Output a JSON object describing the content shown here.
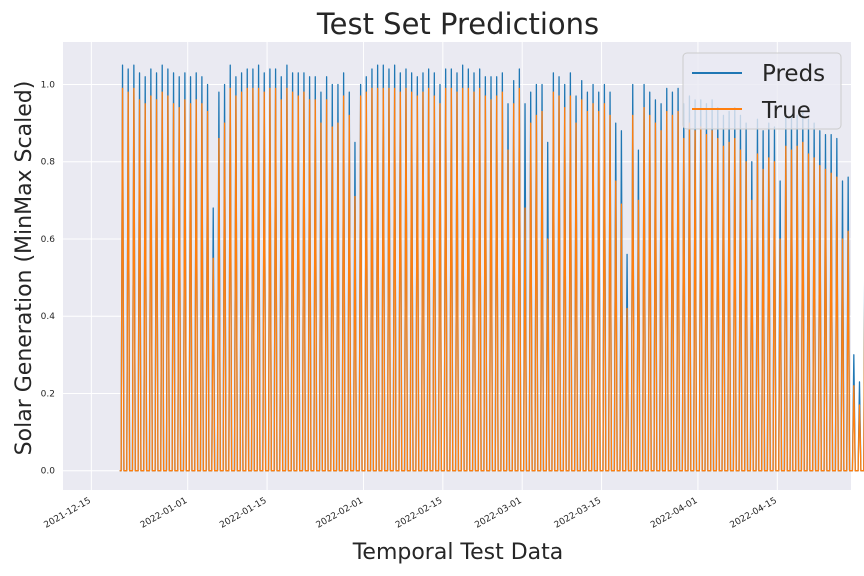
{
  "chart_data": {
    "type": "line",
    "title": "Test Set Predictions",
    "xlabel": "Temporal Test Data",
    "ylabel": "Solar Generation (MinMax Scaled)",
    "x_range": [
      "2021-12-10",
      "2022-04-28"
    ],
    "ylim": [
      -0.05,
      1.11
    ],
    "xticks": [
      "2021-12-15",
      "2022-01-01",
      "2022-01-15",
      "2022-02-01",
      "2022-02-15",
      "2022-03-01",
      "2022-03-15",
      "2022-04-01",
      "2022-04-15"
    ],
    "yticks": [
      "0.0",
      "0.2",
      "0.4",
      "0.6",
      "0.8",
      "1.0"
    ],
    "grid": true,
    "legend_position": "top-right",
    "start_date": "2021-12-20",
    "series": [
      {
        "name": "Preds",
        "color": "#1f77b4",
        "daily_peaks": [
          1.05,
          1.04,
          1.05,
          1.03,
          1.02,
          1.04,
          1.03,
          1.05,
          1.04,
          1.03,
          1.02,
          1.03,
          1.02,
          1.03,
          1.02,
          1.0,
          0.68,
          0.98,
          1.0,
          1.05,
          1.02,
          1.03,
          1.04,
          1.04,
          1.05,
          1.03,
          1.04,
          1.04,
          1.02,
          1.05,
          1.03,
          1.03,
          1.03,
          1.02,
          1.02,
          0.98,
          1.02,
          1.0,
          1.0,
          1.03,
          0.98,
          0.85,
          1.0,
          1.02,
          1.04,
          1.05,
          1.05,
          1.04,
          1.05,
          1.03,
          1.04,
          1.03,
          1.02,
          1.03,
          1.04,
          1.03,
          1.0,
          1.04,
          1.04,
          1.03,
          1.05,
          1.04,
          1.03,
          1.04,
          1.02,
          1.02,
          1.02,
          1.03,
          0.95,
          1.01,
          1.04,
          0.95,
          0.98,
          1.0,
          1.0,
          0.85,
          1.03,
          1.02,
          1.0,
          1.03,
          0.97,
          1.01,
          0.98,
          1.0,
          0.98,
          1.0,
          0.98,
          0.9,
          0.88,
          0.56,
          1.0,
          0.83,
          1.0,
          0.98,
          0.96,
          0.95,
          0.99,
          0.98,
          0.99,
          0.95,
          0.97,
          0.96,
          0.96,
          0.95,
          0.96,
          0.94,
          0.92,
          0.93,
          0.94,
          0.92,
          0.9,
          0.8,
          0.91,
          0.88,
          0.9,
          0.89,
          0.75,
          0.92,
          0.92,
          0.92,
          0.93,
          0.91,
          0.9,
          0.88,
          0.87,
          0.87,
          0.86,
          0.75,
          0.76,
          0.3,
          0.23,
          0.78,
          0.88,
          0.91,
          0.88,
          0.88
        ],
        "daily_minima": [
          0.0,
          0.0,
          0.0,
          0.0,
          0.0,
          0.0,
          0.0,
          0.0,
          0.0,
          0.0,
          0.0,
          0.0,
          0.0,
          0.0,
          0.0,
          0.0,
          0.0,
          0.0,
          0.0,
          0.0,
          0.0,
          0.0,
          0.0,
          0.0,
          0.0,
          0.0,
          0.0,
          0.0,
          0.0,
          0.0,
          0.0,
          0.0,
          0.0,
          0.0,
          0.0,
          0.0,
          0.0,
          0.0,
          0.0,
          0.0,
          0.0,
          0.0,
          0.0,
          0.0,
          0.0,
          0.0,
          0.0,
          0.0,
          0.0,
          0.0,
          0.0,
          0.0,
          0.0,
          0.0,
          0.0,
          0.0,
          0.0,
          0.0,
          0.0,
          0.0,
          0.0,
          0.0,
          0.0,
          0.0,
          0.0,
          0.0,
          0.0,
          0.0,
          0.0,
          0.0,
          0.0,
          0.0,
          0.0,
          0.0,
          0.0,
          0.0,
          0.0,
          0.0,
          0.0,
          0.0,
          0.0,
          0.0,
          0.0,
          0.0,
          0.0,
          0.0,
          0.0,
          0.0,
          0.0,
          0.0,
          0.0,
          0.0,
          0.0,
          0.0,
          0.0,
          0.0,
          0.0,
          0.0,
          0.0,
          0.0,
          0.0,
          0.0,
          0.0,
          0.0,
          0.0,
          0.0,
          0.0,
          0.0,
          0.0,
          0.0,
          0.0,
          0.0,
          0.0,
          0.0,
          0.0,
          0.0,
          0.0,
          0.0,
          0.0,
          0.0,
          0.0,
          0.0,
          0.0,
          0.0,
          0.0,
          0.0,
          0.0,
          0.0,
          0.0,
          0.0,
          0.0,
          0.0,
          0.0,
          0.0
        ]
      },
      {
        "name": "True",
        "color": "#ff7f0e",
        "daily_peaks": [
          0.99,
          0.98,
          0.99,
          0.96,
          0.95,
          0.97,
          0.96,
          0.98,
          0.97,
          0.95,
          0.94,
          0.96,
          0.95,
          0.96,
          0.95,
          0.93,
          0.55,
          0.86,
          0.9,
          0.99,
          0.97,
          0.98,
          0.99,
          0.99,
          0.99,
          0.98,
          0.99,
          0.99,
          0.96,
          0.99,
          0.98,
          0.97,
          0.98,
          0.96,
          0.96,
          0.9,
          0.96,
          0.89,
          0.9,
          0.97,
          0.92,
          0.71,
          0.97,
          0.98,
          0.99,
          0.99,
          0.99,
          0.99,
          0.99,
          0.98,
          0.99,
          0.98,
          0.97,
          0.98,
          0.99,
          0.97,
          0.95,
          0.99,
          0.99,
          0.98,
          0.99,
          0.99,
          0.98,
          0.99,
          0.97,
          0.96,
          0.97,
          0.98,
          0.83,
          0.95,
          0.99,
          0.68,
          0.9,
          0.92,
          0.93,
          0.6,
          0.98,
          0.97,
          0.94,
          0.97,
          0.9,
          0.96,
          0.93,
          0.95,
          0.93,
          0.95,
          0.92,
          0.75,
          0.69,
          0.42,
          0.92,
          0.7,
          0.94,
          0.92,
          0.9,
          0.88,
          0.93,
          0.92,
          0.93,
          0.86,
          0.9,
          0.88,
          0.89,
          0.87,
          0.88,
          0.86,
          0.84,
          0.85,
          0.86,
          0.83,
          0.8,
          0.7,
          0.82,
          0.78,
          0.81,
          0.8,
          0.6,
          0.84,
          0.83,
          0.84,
          0.85,
          0.82,
          0.81,
          0.79,
          0.78,
          0.77,
          0.76,
          0.6,
          0.62,
          0.22,
          0.17,
          0.69,
          0.8,
          0.83,
          0.79,
          0.75
        ],
        "daily_minima": [
          0.0,
          0.0,
          0.0,
          0.0,
          0.0,
          0.0,
          0.0,
          0.0,
          0.0,
          0.0,
          0.0,
          0.0,
          0.0,
          0.0,
          0.0,
          0.0,
          0.0,
          0.0,
          0.0,
          0.0,
          0.0,
          0.0,
          0.0,
          0.0,
          0.0,
          0.0,
          0.0,
          0.0,
          0.0,
          0.0,
          0.0,
          0.0,
          0.0,
          0.0,
          0.0,
          0.0,
          0.0,
          0.0,
          0.0,
          0.0,
          0.0,
          0.0,
          0.0,
          0.0,
          0.0,
          0.0,
          0.0,
          0.0,
          0.0,
          0.0,
          0.0,
          0.0,
          0.0,
          0.0,
          0.0,
          0.0,
          0.0,
          0.0,
          0.0,
          0.0,
          0.0,
          0.0,
          0.0,
          0.0,
          0.0,
          0.0,
          0.0,
          0.0,
          0.0,
          0.0,
          0.0,
          0.0,
          0.0,
          0.0,
          0.0,
          0.0,
          0.0,
          0.0,
          0.0,
          0.0,
          0.0,
          0.0,
          0.0,
          0.0,
          0.0,
          0.0,
          0.0,
          0.0,
          0.0,
          0.0,
          0.0,
          0.0,
          0.0,
          0.0,
          0.0,
          0.0,
          0.0,
          0.0,
          0.0,
          0.0,
          0.0,
          0.0,
          0.0,
          0.0,
          0.0,
          0.0,
          0.0,
          0.0,
          0.0,
          0.0,
          0.0,
          0.0,
          0.0,
          0.0,
          0.0,
          0.0,
          0.0,
          0.0,
          0.0,
          0.0,
          0.0,
          0.0,
          0.0,
          0.0,
          0.0,
          0.0,
          0.0,
          0.0,
          0.0,
          0.0,
          0.0,
          0.0,
          0.0,
          0.0
        ]
      }
    ]
  }
}
